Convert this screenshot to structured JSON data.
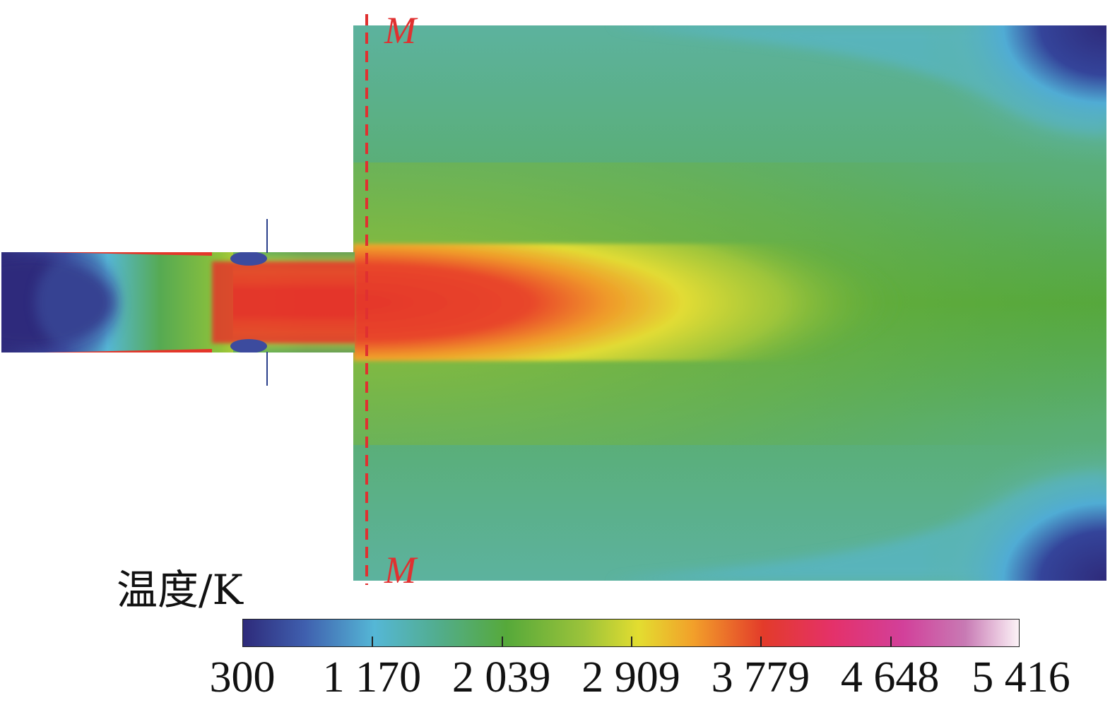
{
  "section_labels": {
    "top": "M",
    "bottom": "M"
  },
  "colorbar": {
    "title": "温度/K",
    "ticks": [
      {
        "value": 300,
        "label": "300"
      },
      {
        "value": 1170,
        "label": "1 170"
      },
      {
        "value": 2039,
        "label": "2 039"
      },
      {
        "value": 2909,
        "label": "2 909"
      },
      {
        "value": 3779,
        "label": "3 779"
      },
      {
        "value": 4648,
        "label": "4 648"
      },
      {
        "value": 5416,
        "label": "5 416"
      }
    ],
    "range": [
      300,
      5416
    ],
    "colors": [
      "#2e2a7a",
      "#3f5fae",
      "#55b7d6",
      "#52ad8f",
      "#56a93a",
      "#9cc33a",
      "#e3dd30",
      "#f2a02a",
      "#e33b2a",
      "#e12f7c",
      "#c06aa6",
      "#fbf0f6"
    ]
  },
  "field_colors": {
    "cold": "#2e2a7a",
    "cyan": "#55b7d6",
    "teal": "#5eb39a",
    "green": "#56a93a",
    "yellow": "#e0de35",
    "orange": "#f0a22a",
    "red": "#e33b2a",
    "magenta": "#e12f7c",
    "section_line": "#e03030"
  }
}
